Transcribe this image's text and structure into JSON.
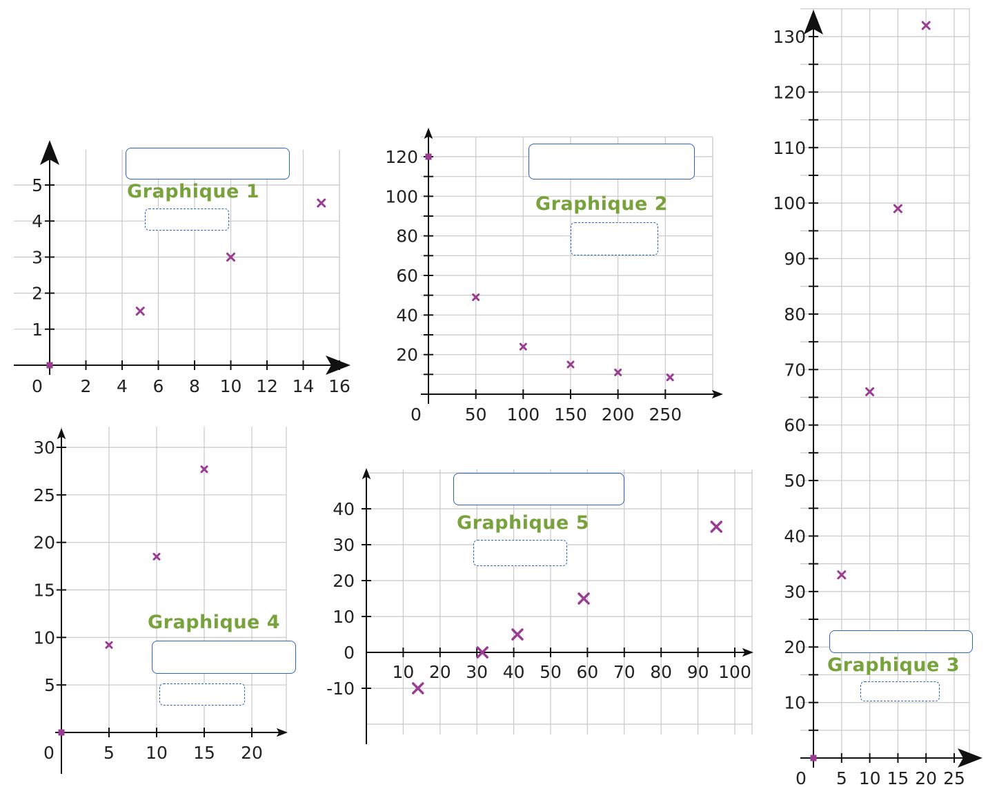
{
  "colors": {
    "marker": "#9b3c93",
    "title": "#78a23c",
    "answer_box": "#2e62bf",
    "grid": "#c8c8c8",
    "axis": "#111111"
  },
  "icons": {
    "arrow_head": "arrow-head-icon",
    "marker": "cross-marker-icon"
  },
  "chart_data": [
    {
      "id": "g1",
      "type": "scatter",
      "title": "Graphique 1",
      "xlim": [
        0,
        16
      ],
      "ylim": [
        0,
        5
      ],
      "x_ticks": [
        "0",
        "2",
        "4",
        "6",
        "8",
        "10",
        "12",
        "14",
        "16"
      ],
      "y_ticks": [
        "1",
        "2",
        "3",
        "4",
        "5"
      ],
      "points": [
        [
          0,
          0
        ],
        [
          5,
          1.5
        ],
        [
          10,
          3
        ],
        [
          15,
          4.5
        ]
      ],
      "grid": true,
      "marker": "x"
    },
    {
      "id": "g2",
      "type": "scatter",
      "title": "Graphique 2",
      "xlim": [
        0,
        300
      ],
      "ylim": [
        0,
        120
      ],
      "x_ticks": [
        "0",
        "50",
        "100",
        "150",
        "200",
        "250"
      ],
      "y_ticks": [
        "20",
        "40",
        "60",
        "80",
        "100",
        "120"
      ],
      "points": [
        [
          0,
          120
        ],
        [
          50,
          49
        ],
        [
          100,
          24
        ],
        [
          150,
          15
        ],
        [
          200,
          11
        ],
        [
          255,
          8.5
        ]
      ],
      "grid": true,
      "marker": "x"
    },
    {
      "id": "g3",
      "type": "scatter",
      "title": "Graphique 3",
      "xlim": [
        0,
        25
      ],
      "ylim": [
        0,
        130
      ],
      "x_ticks": [
        "0",
        "5",
        "10",
        "15",
        "20",
        "25"
      ],
      "y_ticks": [
        "10",
        "20",
        "30",
        "40",
        "50",
        "60",
        "70",
        "80",
        "90",
        "100",
        "110",
        "120",
        "130"
      ],
      "points": [
        [
          0,
          0
        ],
        [
          5,
          33
        ],
        [
          10,
          66
        ],
        [
          15,
          99
        ],
        [
          20,
          132
        ]
      ],
      "grid": true,
      "marker": "x"
    },
    {
      "id": "g4",
      "type": "scatter",
      "title": "Graphique 4",
      "xlim": [
        0,
        20
      ],
      "ylim": [
        0,
        30
      ],
      "x_ticks": [
        "0",
        "5",
        "10",
        "15",
        "20"
      ],
      "y_ticks": [
        "5",
        "10",
        "15",
        "20",
        "25",
        "30"
      ],
      "points": [
        [
          0,
          0
        ],
        [
          5,
          9.2
        ],
        [
          10,
          18.5
        ],
        [
          15,
          27.7
        ]
      ],
      "grid": true,
      "marker": "x"
    },
    {
      "id": "g5",
      "type": "scatter",
      "title": "Graphique 5",
      "xlim": [
        0,
        100
      ],
      "ylim": [
        -10,
        40
      ],
      "x_ticks": [
        "10",
        "20",
        "30",
        "40",
        "50",
        "60",
        "70",
        "80",
        "90",
        "100"
      ],
      "y_ticks": [
        "-10",
        "0",
        "10",
        "20",
        "30",
        "40"
      ],
      "points": [
        [
          14,
          -10
        ],
        [
          31.5,
          0
        ],
        [
          41,
          5
        ],
        [
          59,
          15
        ],
        [
          95,
          35
        ]
      ],
      "grid": true,
      "marker": "x"
    }
  ]
}
